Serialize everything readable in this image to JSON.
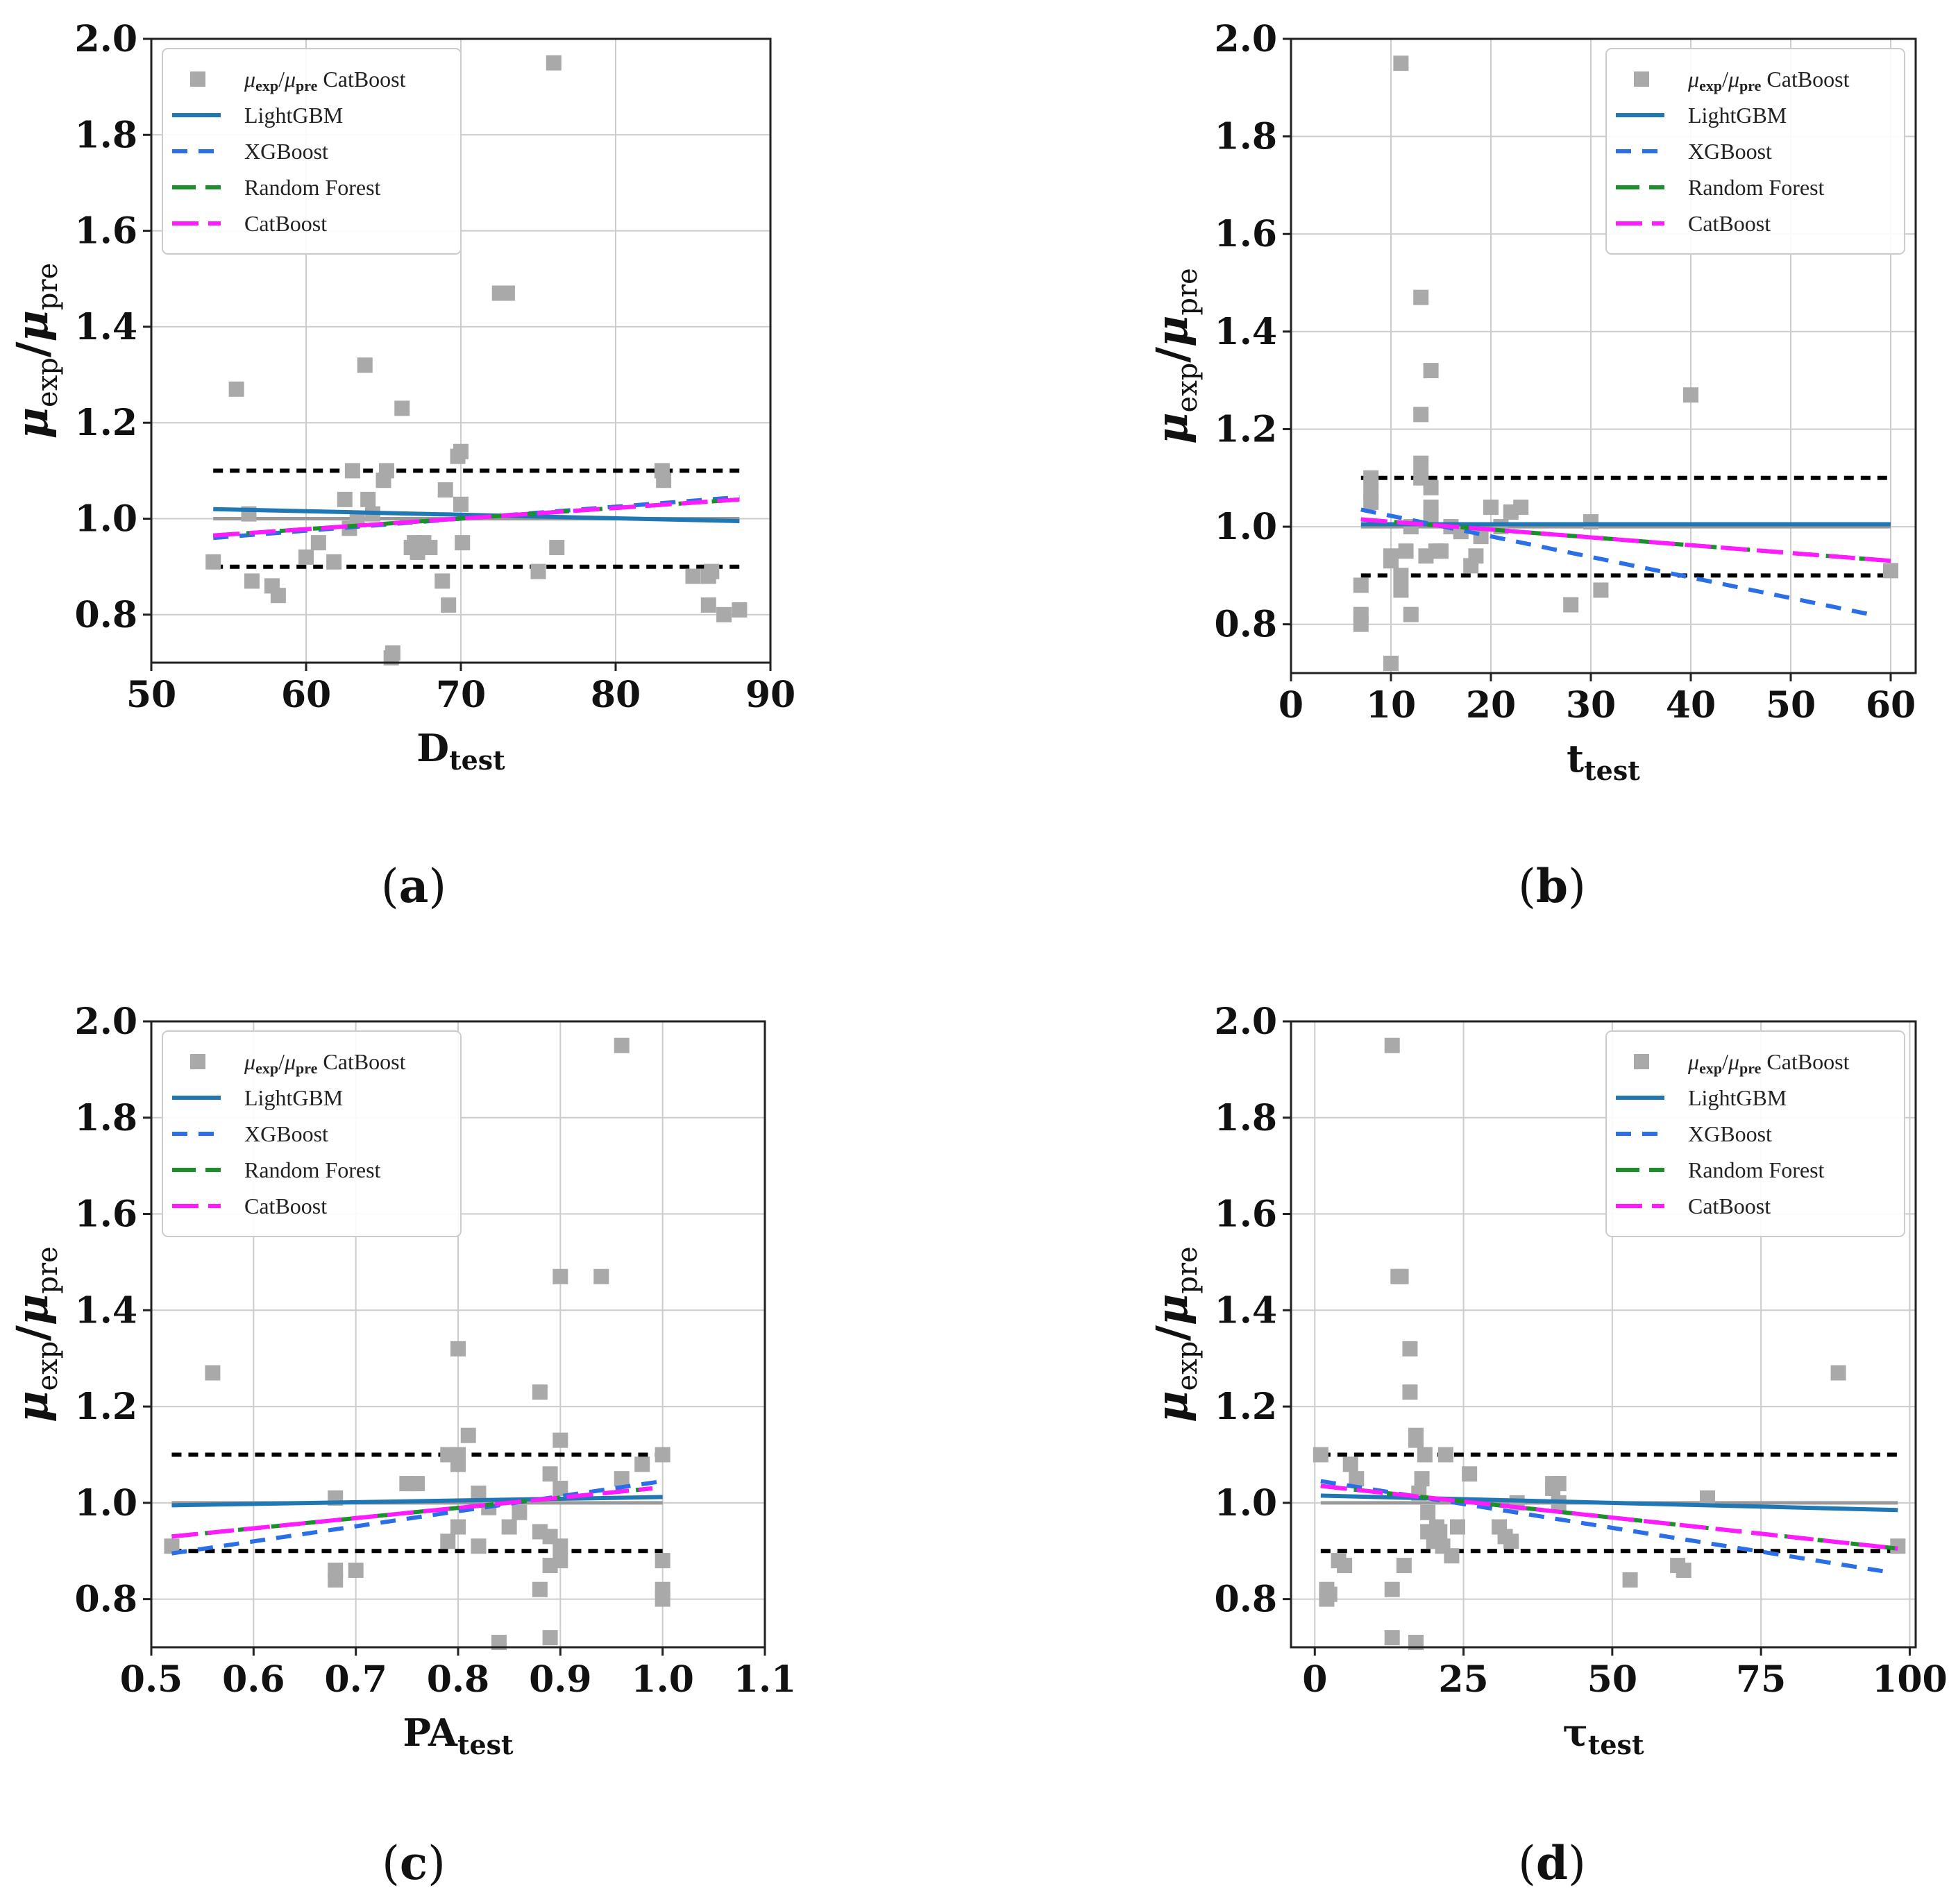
{
  "figure": {
    "panel_labels": [
      "(a)",
      "(b)",
      "(c)",
      "(d)"
    ]
  },
  "colors": {
    "scatter": "#a9a9a9",
    "LightGBM": "#1f77b4",
    "XGBoost": "#2a6fe8",
    "Random Forest": "#1a8f2a",
    "CatBoost": "#ff1aff",
    "bounds": "#000000",
    "reference": "#999999",
    "grid": "#cccccc"
  },
  "legend_entries": [
    "μexp/μpre CatBoost",
    "LightGBM",
    "XGBoost",
    "Random Forest",
    "CatBoost"
  ],
  "chart_data": [
    {
      "type": "scatter",
      "panel": "(a)",
      "xlabel": "Dtest",
      "xlabel_main": "D",
      "xlabel_sub": "test",
      "ylabel": "μexp/μpre",
      "xlim": [
        50,
        90
      ],
      "ylim": [
        0.7,
        2.0
      ],
      "xticks": [
        50,
        60,
        70,
        80,
        90
      ],
      "yticks": [
        0.8,
        1.0,
        1.2,
        1.4,
        1.6,
        1.8,
        2.0
      ],
      "xtick_labels": [
        "50",
        "60",
        "70",
        "80",
        "90"
      ],
      "ytick_labels": [
        "0.8",
        "1.0",
        "1.2",
        "1.4",
        "1.6",
        "1.8",
        "2.0"
      ],
      "legend_position": "top-left",
      "points": {
        "name": "μexp/μpre CatBoost",
        "x": [
          54,
          55.5,
          56.3,
          56.5,
          57.8,
          58.2,
          60,
          60.8,
          61.8,
          62.5,
          62.8,
          63,
          63.3,
          63.8,
          64,
          64.3,
          65,
          65.2,
          65.5,
          65.6,
          66.2,
          66.8,
          67,
          67.2,
          67.6,
          68,
          68.8,
          69,
          69.2,
          69.8,
          70,
          70,
          70.1,
          72.5,
          73,
          75,
          76,
          76.2,
          83,
          83.1,
          85,
          86,
          86,
          86.2,
          87,
          88
        ],
        "y": [
          0.91,
          1.27,
          1.01,
          0.87,
          0.86,
          0.84,
          0.92,
          0.95,
          0.91,
          1.04,
          0.98,
          1.1,
          1.0,
          1.32,
          1.04,
          1.01,
          1.08,
          1.1,
          0.71,
          0.72,
          1.23,
          0.94,
          0.95,
          0.93,
          0.95,
          0.94,
          0.87,
          1.06,
          0.82,
          1.13,
          1.14,
          1.03,
          0.95,
          1.47,
          1.47,
          0.89,
          1.95,
          0.94,
          1.1,
          1.08,
          0.88,
          0.88,
          0.82,
          0.89,
          0.8,
          0.81
        ]
      },
      "reference_line": {
        "x": [
          54,
          88
        ],
        "y": [
          1.0,
          1.0
        ]
      },
      "bounds": [
        0.9,
        1.1
      ],
      "bounds_x": [
        54,
        88
      ],
      "fits": [
        {
          "name": "LightGBM",
          "x": [
            54,
            88
          ],
          "y": [
            1.02,
            0.995
          ]
        },
        {
          "name": "XGBoost",
          "x": [
            54,
            88
          ],
          "y": [
            0.96,
            1.045
          ]
        },
        {
          "name": "Random Forest",
          "x": [
            54,
            88
          ],
          "y": [
            0.965,
            1.04
          ]
        },
        {
          "name": "CatBoost",
          "x": [
            54,
            88
          ],
          "y": [
            0.965,
            1.04
          ]
        }
      ]
    },
    {
      "type": "scatter",
      "panel": "(b)",
      "xlabel": "ttest",
      "xlabel_main": "t",
      "xlabel_sub": "test",
      "ylabel": "μexp/μpre",
      "xlim": [
        0,
        62.5
      ],
      "ylim": [
        0.7,
        2.0
      ],
      "xticks": [
        0,
        10,
        20,
        30,
        40,
        50,
        60
      ],
      "yticks": [
        0.8,
        1.0,
        1.2,
        1.4,
        1.6,
        1.8,
        2.0
      ],
      "xtick_labels": [
        "0",
        "10",
        "20",
        "30",
        "40",
        "50",
        "60"
      ],
      "ytick_labels": [
        "0.8",
        "1.0",
        "1.2",
        "1.4",
        "1.6",
        "1.8",
        "2.0"
      ],
      "legend_position": "top-right",
      "points": {
        "name": "μexp/μpre CatBoost",
        "x": [
          7,
          7,
          7,
          8,
          8,
          8,
          10,
          10,
          10,
          11,
          11,
          11,
          11.5,
          12,
          12,
          13,
          13,
          13,
          13,
          13.5,
          14,
          14,
          14,
          14,
          14.5,
          15,
          16,
          17,
          18,
          18.5,
          19,
          20,
          21,
          22,
          23,
          28,
          30,
          31,
          40,
          60
        ],
        "y": [
          0.88,
          0.8,
          0.82,
          1.1,
          1.07,
          1.05,
          0.94,
          0.93,
          0.72,
          1.95,
          0.87,
          0.9,
          0.95,
          0.82,
          1.0,
          1.47,
          1.23,
          1.13,
          1.1,
          0.94,
          1.32,
          1.08,
          1.04,
          1.02,
          0.95,
          0.95,
          1.0,
          0.99,
          0.92,
          0.94,
          0.98,
          1.04,
          1.0,
          1.03,
          1.04,
          0.84,
          1.01,
          0.87,
          1.27,
          0.91
        ]
      },
      "reference_line": {
        "x": [
          7,
          60
        ],
        "y": [
          1.0,
          1.0
        ]
      },
      "bounds": [
        0.9,
        1.1
      ],
      "bounds_x": [
        7,
        60
      ],
      "fits": [
        {
          "name": "LightGBM",
          "x": [
            7,
            60
          ],
          "y": [
            1.005,
            1.005
          ]
        },
        {
          "name": "XGBoost",
          "x": [
            7,
            58
          ],
          "y": [
            1.035,
            0.82
          ]
        },
        {
          "name": "Random Forest",
          "x": [
            7,
            60
          ],
          "y": [
            1.015,
            0.93
          ]
        },
        {
          "name": "CatBoost",
          "x": [
            7,
            60
          ],
          "y": [
            1.015,
            0.93
          ]
        }
      ]
    },
    {
      "type": "scatter",
      "panel": "(c)",
      "xlabel": "PAtest",
      "xlabel_main": "PA",
      "xlabel_sub": "test",
      "ylabel": "μexp/μpre",
      "xlim": [
        0.5,
        1.1
      ],
      "ylim": [
        0.7,
        2.0
      ],
      "xticks": [
        0.5,
        0.6,
        0.7,
        0.8,
        0.9,
        1.0,
        1.1
      ],
      "yticks": [
        0.8,
        1.0,
        1.2,
        1.4,
        1.6,
        1.8,
        2.0
      ],
      "xtick_labels": [
        "0.5",
        "0.6",
        "0.7",
        "0.8",
        "0.9",
        "1.0",
        "1.1"
      ],
      "ytick_labels": [
        "0.8",
        "1.0",
        "1.2",
        "1.4",
        "1.6",
        "1.8",
        "2.0"
      ],
      "legend_position": "top-left",
      "points": {
        "name": "μexp/μpre CatBoost",
        "x": [
          0.52,
          0.56,
          0.68,
          0.68,
          0.68,
          0.7,
          0.75,
          0.76,
          0.79,
          0.79,
          0.8,
          0.8,
          0.8,
          0.8,
          0.81,
          0.82,
          0.82,
          0.83,
          0.84,
          0.85,
          0.86,
          0.88,
          0.88,
          0.88,
          0.89,
          0.89,
          0.89,
          0.89,
          0.9,
          0.9,
          0.9,
          0.9,
          0.9,
          0.94,
          0.96,
          0.96,
          0.98,
          1.0,
          1.0,
          1.0,
          1.0
        ],
        "y": [
          0.91,
          1.27,
          1.01,
          0.84,
          0.86,
          0.86,
          1.04,
          1.04,
          1.1,
          0.92,
          1.32,
          1.1,
          1.08,
          0.95,
          1.14,
          1.02,
          0.91,
          0.99,
          0.71,
          0.95,
          0.98,
          1.23,
          0.94,
          0.82,
          1.06,
          0.93,
          0.87,
          0.72,
          1.47,
          1.13,
          0.91,
          0.88,
          1.03,
          1.47,
          1.95,
          1.05,
          1.08,
          1.1,
          0.88,
          0.82,
          0.8
        ]
      },
      "reference_line": {
        "x": [
          0.52,
          1.0
        ],
        "y": [
          1.0,
          1.0
        ]
      },
      "bounds": [
        0.9,
        1.1
      ],
      "bounds_x": [
        0.52,
        1.0
      ],
      "fits": [
        {
          "name": "LightGBM",
          "x": [
            0.52,
            1.0
          ],
          "y": [
            0.995,
            1.012
          ]
        },
        {
          "name": "XGBoost",
          "x": [
            0.52,
            1.0
          ],
          "y": [
            0.895,
            1.045
          ]
        },
        {
          "name": "Random Forest",
          "x": [
            0.52,
            0.99
          ],
          "y": [
            0.93,
            1.03
          ]
        },
        {
          "name": "CatBoost",
          "x": [
            0.52,
            0.99
          ],
          "y": [
            0.93,
            1.03
          ]
        }
      ]
    },
    {
      "type": "scatter",
      "panel": "(d)",
      "xlabel": "τtest",
      "xlabel_main": "τ",
      "xlabel_sub": "test",
      "ylabel": "μexp/μpre",
      "xlim": [
        -4,
        101
      ],
      "ylim": [
        0.7,
        2.0
      ],
      "xticks": [
        0,
        25,
        50,
        75,
        100
      ],
      "yticks": [
        0.8,
        1.0,
        1.2,
        1.4,
        1.6,
        1.8,
        2.0
      ],
      "xtick_labels": [
        "0",
        "25",
        "50",
        "75",
        "100"
      ],
      "ytick_labels": [
        "0.8",
        "1.0",
        "1.2",
        "1.4",
        "1.6",
        "1.8",
        "2.0"
      ],
      "legend_position": "top-right",
      "points": {
        "name": "μexp/μpre CatBoost",
        "x": [
          1,
          2,
          2,
          2.5,
          4,
          5,
          6,
          7,
          13,
          13,
          13,
          14,
          14.5,
          15,
          16,
          16,
          17,
          17,
          17,
          17.5,
          18,
          18.5,
          19,
          19,
          20,
          20.5,
          21,
          21.5,
          22,
          23,
          24,
          26,
          31,
          32,
          33,
          34,
          40,
          40,
          41,
          41,
          53,
          61,
          62,
          66,
          88,
          98
        ],
        "y": [
          1.1,
          0.8,
          0.82,
          0.81,
          0.88,
          0.87,
          1.08,
          1.05,
          1.95,
          0.82,
          0.72,
          1.47,
          1.47,
          0.87,
          1.23,
          1.32,
          1.13,
          1.14,
          0.71,
          1.02,
          1.05,
          1.1,
          0.94,
          0.98,
          0.92,
          0.95,
          0.94,
          0.91,
          1.1,
          0.89,
          0.95,
          1.06,
          0.95,
          0.93,
          0.92,
          1.0,
          1.04,
          1.03,
          1.0,
          1.04,
          0.84,
          0.87,
          0.86,
          1.01,
          1.27,
          0.91
        ]
      },
      "reference_line": {
        "x": [
          1,
          98
        ],
        "y": [
          1.0,
          1.0
        ]
      },
      "bounds": [
        0.9,
        1.1
      ],
      "bounds_x": [
        1,
        98
      ],
      "fits": [
        {
          "name": "LightGBM",
          "x": [
            1,
            98
          ],
          "y": [
            1.015,
            0.985
          ]
        },
        {
          "name": "XGBoost",
          "x": [
            1,
            97
          ],
          "y": [
            1.045,
            0.855
          ]
        },
        {
          "name": "Random Forest",
          "x": [
            1,
            98
          ],
          "y": [
            1.035,
            0.905
          ]
        },
        {
          "name": "CatBoost",
          "x": [
            1,
            98
          ],
          "y": [
            1.035,
            0.905
          ]
        }
      ]
    }
  ]
}
